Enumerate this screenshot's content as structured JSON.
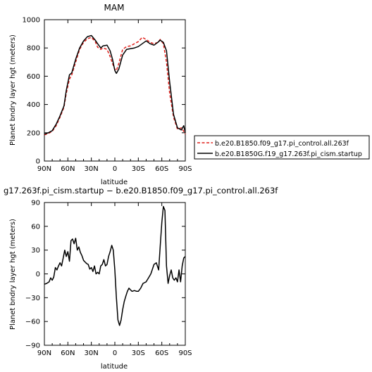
{
  "chart_data": [
    {
      "type": "line",
      "title": "MAM",
      "xlabel": "latitude",
      "ylabel": "Planet bndry layer hgt (meters)",
      "xlim": [
        90,
        -90
      ],
      "ylim": [
        0,
        1000
      ],
      "x_ticks": [
        90,
        60,
        30,
        0,
        -30,
        -60,
        -90
      ],
      "x_tick_labels": [
        "90N",
        "60N",
        "30N",
        "0",
        "30S",
        "60S",
        "90S"
      ],
      "y_ticks": [
        0,
        200,
        400,
        600,
        800,
        1000
      ],
      "y_tick_labels": [
        "0",
        "200",
        "400",
        "600",
        "800",
        "1000"
      ],
      "legend_position": "right",
      "series": [
        {
          "name": "b.e20.B1850.f09_g17.pi_control.all.263f",
          "color": "#e0201b",
          "dash": "dashed",
          "x": [
            90,
            85,
            80,
            75,
            70,
            65,
            62,
            58,
            55,
            50,
            45,
            40,
            35,
            30,
            25,
            22,
            18,
            15,
            10,
            6,
            3,
            0,
            -2,
            -5,
            -10,
            -15,
            -20,
            -25,
            -30,
            -35,
            -40,
            -45,
            -50,
            -55,
            -58,
            -62,
            -66,
            -70,
            -75,
            -80,
            -85,
            -88,
            -90
          ],
          "y": [
            185,
            195,
            210,
            250,
            310,
            380,
            480,
            580,
            610,
            700,
            790,
            840,
            865,
            875,
            845,
            805,
            790,
            800,
            790,
            740,
            690,
            650,
            640,
            690,
            790,
            810,
            815,
            830,
            845,
            875,
            860,
            840,
            830,
            840,
            860,
            830,
            700,
            480,
            310,
            225,
            235,
            210,
            190
          ]
        },
        {
          "name": "b.e20.B1850G.f19_g17.263f.pi_cism.startup",
          "color": "#000000",
          "dash": "solid",
          "x": [
            90,
            85,
            80,
            75,
            70,
            65,
            62,
            58,
            55,
            50,
            45,
            40,
            35,
            30,
            25,
            22,
            18,
            15,
            10,
            6,
            3,
            0,
            -2,
            -5,
            -10,
            -15,
            -20,
            -25,
            -30,
            -35,
            -40,
            -45,
            -50,
            -55,
            -58,
            -62,
            -66,
            -70,
            -75,
            -80,
            -85,
            -88,
            -90
          ],
          "y": [
            190,
            200,
            215,
            260,
            320,
            390,
            500,
            610,
            625,
            720,
            800,
            850,
            880,
            888,
            855,
            830,
            800,
            815,
            820,
            780,
            720,
            640,
            620,
            650,
            750,
            790,
            795,
            800,
            810,
            830,
            850,
            830,
            820,
            840,
            855,
            840,
            780,
            560,
            330,
            235,
            220,
            250,
            200
          ]
        }
      ]
    },
    {
      "type": "line",
      "title": "g17.263f.pi_cism.startup − b.e20.B1850.f09_g17.pi_control.all.263f",
      "xlabel": "latitude",
      "ylabel": "Planet bndry layer hgt (meters)",
      "xlim": [
        90,
        -90
      ],
      "ylim": [
        -90,
        90
      ],
      "x_ticks": [
        90,
        60,
        30,
        0,
        -30,
        -60,
        -90
      ],
      "x_tick_labels": [
        "90N",
        "60N",
        "30N",
        "0",
        "30S",
        "60S",
        "90S"
      ],
      "y_ticks": [
        -90,
        -60,
        -30,
        0,
        30,
        60,
        90
      ],
      "y_tick_labels": [
        "−90",
        "−60",
        "−30",
        "0",
        "30",
        "60",
        "90"
      ],
      "series": [
        {
          "color": "#000000",
          "x": [
            90,
            87,
            84,
            82,
            80,
            78,
            76,
            74,
            72,
            70,
            68,
            66,
            64,
            62,
            60,
            58,
            56,
            54,
            52,
            50,
            48,
            46,
            44,
            42,
            40,
            38,
            36,
            34,
            32,
            30,
            28,
            26,
            24,
            22,
            20,
            18,
            16,
            14,
            12,
            10,
            8,
            6,
            4,
            2,
            0,
            -2,
            -4,
            -6,
            -8,
            -10,
            -12,
            -14,
            -16,
            -18,
            -20,
            -22,
            -25,
            -28,
            -30,
            -33,
            -36,
            -40,
            -43,
            -46,
            -50,
            -53,
            -56,
            -58,
            -60,
            -62,
            -64,
            -66,
            -68,
            -70,
            -72,
            -74,
            -76,
            -78,
            -80,
            -82,
            -84,
            -86,
            -88,
            -90
          ],
          "y": [
            -13,
            -12,
            -10,
            -5,
            -8,
            -4,
            8,
            5,
            10,
            14,
            10,
            20,
            30,
            22,
            28,
            16,
            42,
            44,
            38,
            45,
            30,
            34,
            27,
            23,
            17,
            15,
            13,
            12,
            6,
            8,
            3,
            10,
            0,
            2,
            0,
            10,
            12,
            18,
            10,
            12,
            22,
            28,
            36,
            30,
            5,
            -30,
            -58,
            -65,
            -58,
            -45,
            -35,
            -28,
            -22,
            -18,
            -20,
            -22,
            -21,
            -22,
            -22,
            -18,
            -12,
            -10,
            -5,
            0,
            12,
            14,
            5,
            35,
            65,
            85,
            80,
            10,
            -12,
            -2,
            5,
            -5,
            -8,
            -5,
            -10,
            5,
            -10,
            10,
            20,
            22
          ]
        }
      ]
    }
  ]
}
